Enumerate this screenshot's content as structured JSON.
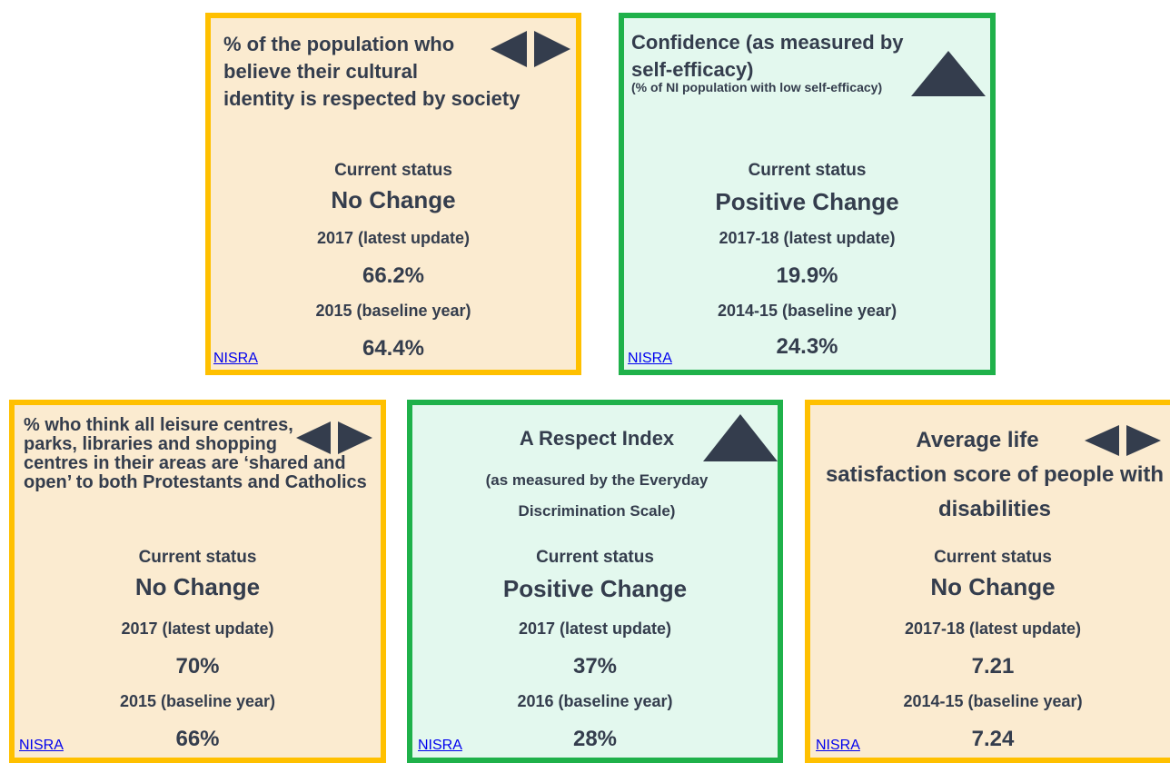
{
  "cards": [
    {
      "title": "% of the population who believe their cultural identity is respected by society",
      "status_label": "Current status",
      "status": "No Change",
      "latest_label": "2017 (latest update)",
      "latest_value": "66.2%",
      "baseline_label": "2015 (baseline year)",
      "baseline_value": "64.4%",
      "source": "NISRA"
    },
    {
      "title": "Confidence (as measured by self-efficacy)",
      "subtitle": "(% of NI population with low self-efficacy)",
      "status_label": "Current status",
      "status": "Positive Change",
      "latest_label": "2017-18 (latest update)",
      "latest_value": "19.9%",
      "baseline_label": "2014-15 (baseline year)",
      "baseline_value": "24.3%",
      "source": "NISRA"
    },
    {
      "title": "% who think all leisure centres, parks, libraries and shopping centres in their areas are ‘shared and open’ to both Protestants and Catholics",
      "status_label": "Current status",
      "status": "No Change",
      "latest_label": "2017 (latest update)",
      "latest_value": "70%",
      "baseline_label": "2015 (baseline year)",
      "baseline_value": "66%",
      "source": "NISRA"
    },
    {
      "title": "A Respect Index",
      "subtitle": "(as measured by the Everyday Discrimination Scale)",
      "status_label": "Current status",
      "status": "Positive Change",
      "latest_label": "2017 (latest update)",
      "latest_value": "37%",
      "baseline_label": "2016 (baseline year)",
      "baseline_value": "28%",
      "source": "NISRA"
    },
    {
      "title": "Average life satisfaction score of people with disabilities",
      "status_label": "Current status",
      "status": "No Change",
      "latest_label": "2017-18 (latest update)",
      "latest_value": "7.21",
      "baseline_label": "2014-15 (baseline year)",
      "baseline_value": "7.24",
      "source": "NISRA"
    }
  ]
}
